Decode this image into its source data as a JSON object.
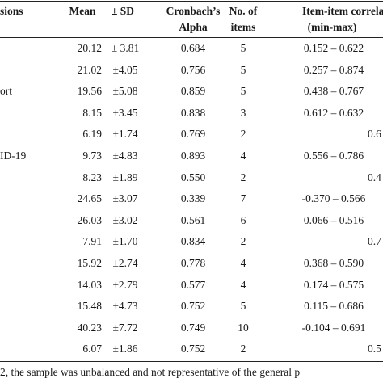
{
  "table": {
    "headers": {
      "dimensions": "sions",
      "mean": "Mean",
      "sd": "± SD",
      "cronbach_1": "Cronbach’s",
      "cronbach_2": "Alpha",
      "items_1": "No. of",
      "items_2": "items",
      "corr_1": "Item-item correlatio",
      "corr_2": "(min-max)"
    },
    "rows": [
      {
        "label": "",
        "mean": "20.12",
        "sd": "± 3.81",
        "alpha": "0.684",
        "items": "5",
        "corr": "0.152 – 0.622",
        "extra": ""
      },
      {
        "label": "",
        "mean": "21.02",
        "sd": "±4.05",
        "alpha": "0.756",
        "items": "5",
        "corr": "0.257 – 0.874",
        "extra": ""
      },
      {
        "label": "ort",
        "mean": "19.56",
        "sd": "±5.08",
        "alpha": "0.859",
        "items": "5",
        "corr": "0.438 – 0.767",
        "extra": ""
      },
      {
        "label": "",
        "mean": "8.15",
        "sd": "±3.45",
        "alpha": "0.838",
        "items": "3",
        "corr": "0.612 – 0.632",
        "extra": ""
      },
      {
        "label": "",
        "mean": "6.19",
        "sd": "±1.74",
        "alpha": "0.769",
        "items": "2",
        "corr": "",
        "extra": "0.6"
      },
      {
        "label": "ID-19",
        "mean": "9.73",
        "sd": "±4.83",
        "alpha": "0.893",
        "items": "4",
        "corr": "0.556 – 0.786",
        "extra": ""
      },
      {
        "label": "",
        "mean": "8.23",
        "sd": "±1.89",
        "alpha": "0.550",
        "items": "2",
        "corr": "",
        "extra": "0.4"
      },
      {
        "label": "",
        "mean": "24.65",
        "sd": "±3.07",
        "alpha": "0.339",
        "items": "7",
        "corr": "-0.370 – 0.566",
        "extra": ""
      },
      {
        "label": "",
        "mean": "26.03",
        "sd": "±3.02",
        "alpha": "0.561",
        "items": "6",
        "corr": "0.066 – 0.516",
        "extra": ""
      },
      {
        "label": "",
        "mean": "7.91",
        "sd": "±1.70",
        "alpha": "0.834",
        "items": "2",
        "corr": "",
        "extra": "0.7"
      },
      {
        "label": "",
        "mean": "15.92",
        "sd": "±2.74",
        "alpha": "0.778",
        "items": "4",
        "corr": "0.368 – 0.590",
        "extra": ""
      },
      {
        "label": "",
        "mean": "14.03",
        "sd": "±2.79",
        "alpha": "0.577",
        "items": "4",
        "corr": "0.174 – 0.575",
        "extra": ""
      },
      {
        "label": "",
        "mean": "15.48",
        "sd": "±4.73",
        "alpha": "0.752",
        "items": "5",
        "corr": "0.115 – 0.686",
        "extra": ""
      },
      {
        "label": "",
        "mean": "40.23",
        "sd": "±7.72",
        "alpha": "0.749",
        "items": "10",
        "corr": "-0.104 – 0.691",
        "extra": ""
      },
      {
        "label": "",
        "mean": "6.07",
        "sd": "±1.86",
        "alpha": "0.752",
        "items": "2",
        "corr": "",
        "extra": "0.5"
      }
    ]
  },
  "footnote": "2, the sample was unbalanced and not representative of the general p"
}
